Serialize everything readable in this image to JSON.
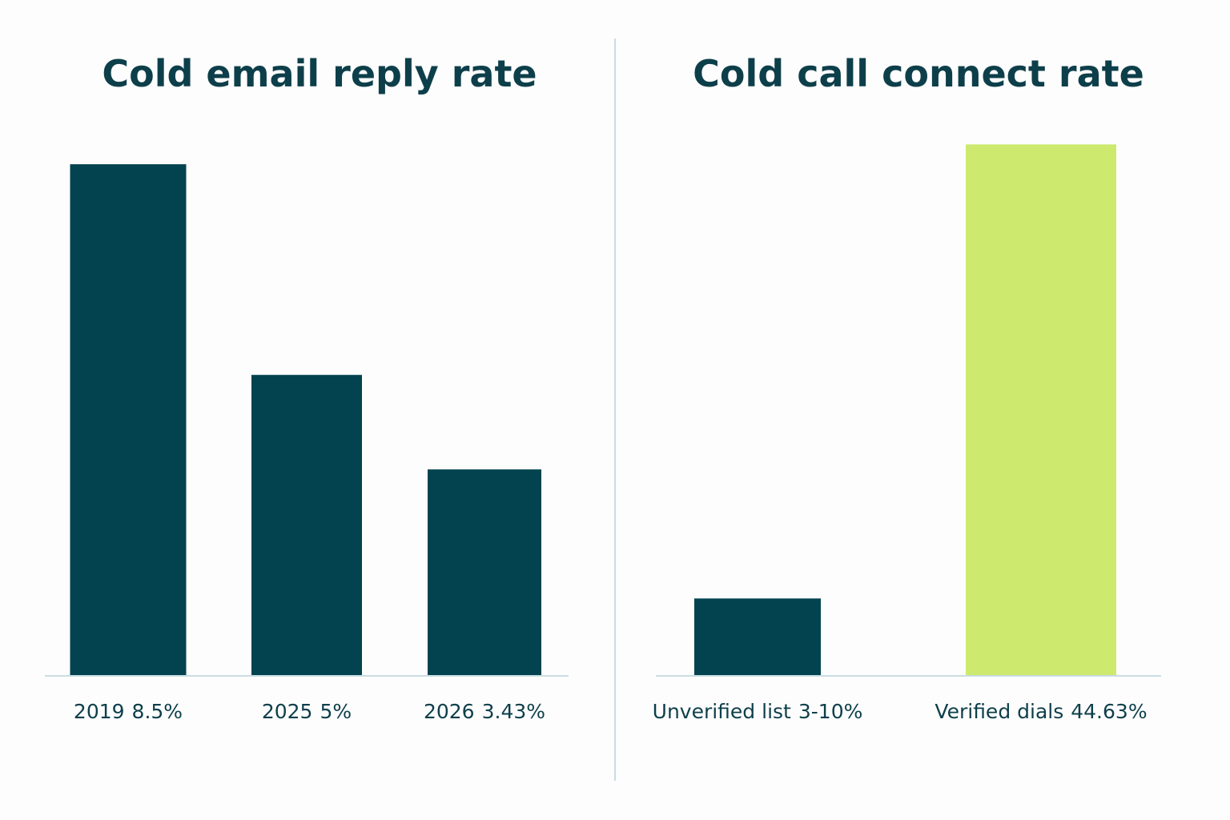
{
  "chart_data": [
    {
      "type": "bar",
      "title": "Cold email reply rate",
      "categories": [
        "2019",
        "2025",
        "2026"
      ],
      "values": [
        8.5,
        5,
        3.43
      ],
      "value_labels": [
        "8.5%",
        "5%",
        "3.43%"
      ],
      "colors": [
        "#03434f",
        "#03434f",
        "#03434f"
      ],
      "ylim": [
        0,
        9.1
      ]
    },
    {
      "type": "bar",
      "title": "Cold call connect rate",
      "categories": [
        "Unverified list",
        "Verified dials"
      ],
      "values": [
        6.5,
        44.63
      ],
      "value_labels": [
        "3-10%",
        "44.63%"
      ],
      "colors": [
        "#03434f",
        "#cde96e"
      ],
      "ylim": [
        0,
        46
      ]
    }
  ]
}
